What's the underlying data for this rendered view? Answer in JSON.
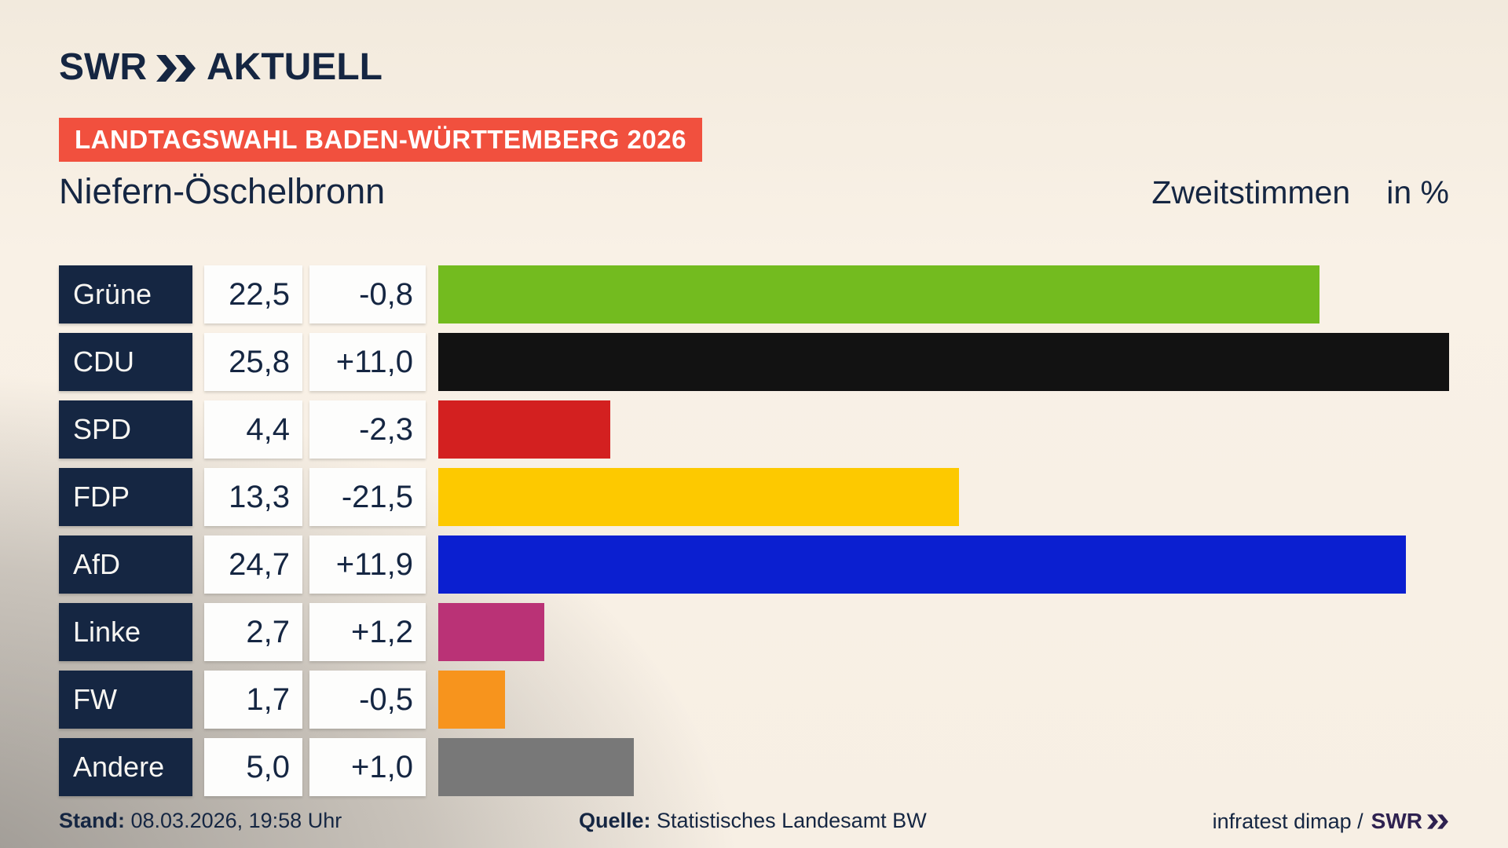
{
  "brand": {
    "swr": "SWR",
    "aktuell": "AKTUELL"
  },
  "banner": {
    "label": "LANDTAGSWAHL BADEN-WÜRTTEMBERG 2026",
    "bg_color": "#f1503e",
    "text_color": "#ffffff"
  },
  "header": {
    "location": "Niefern-Öschelbronn",
    "metric": "Zweitstimmen",
    "unit": "in %"
  },
  "chart_data": {
    "type": "bar",
    "title": "Niefern-Öschelbronn",
    "subtitle": "Zweitstimmen in %",
    "orientation": "horizontal",
    "scale_max": 25.8,
    "grid": false,
    "legend": false,
    "categories": [
      "Grüne",
      "CDU",
      "SPD",
      "FDP",
      "AfD",
      "Linke",
      "FW",
      "Andere"
    ],
    "values": [
      22.5,
      25.8,
      4.4,
      13.3,
      24.7,
      2.7,
      1.7,
      5.0
    ],
    "changes": [
      -0.8,
      11.0,
      -2.3,
      -21.5,
      11.9,
      1.2,
      -0.5,
      1.0
    ],
    "rows": [
      {
        "key": "gruene",
        "party": "Grüne",
        "value": 22.5,
        "value_label": "22,5",
        "change_label": "-0,8",
        "color": "#73bb1f"
      },
      {
        "key": "cdu",
        "party": "CDU",
        "value": 25.8,
        "value_label": "25,8",
        "change_label": "+11,0",
        "color": "#121212"
      },
      {
        "key": "spd",
        "party": "SPD",
        "value": 4.4,
        "value_label": "4,4",
        "change_label": "-2,3",
        "color": "#d32020"
      },
      {
        "key": "fdp",
        "party": "FDP",
        "value": 13.3,
        "value_label": "13,3",
        "change_label": "-21,5",
        "color": "#fdc900"
      },
      {
        "key": "afd",
        "party": "AfD",
        "value": 24.7,
        "value_label": "24,7",
        "change_label": "+11,9",
        "color": "#0b1fd0"
      },
      {
        "key": "linke",
        "party": "Linke",
        "value": 2.7,
        "value_label": "2,7",
        "change_label": "+1,2",
        "color": "#ba3276"
      },
      {
        "key": "fw",
        "party": "FW",
        "value": 1.7,
        "value_label": "1,7",
        "change_label": "-0,5",
        "color": "#f7941d"
      },
      {
        "key": "andere",
        "party": "Andere",
        "value": 5.0,
        "value_label": "5,0",
        "change_label": "+1,0",
        "color": "#787878"
      }
    ]
  },
  "footer": {
    "stand_label": "Stand:",
    "stand_value": " 08.03.2026, 19:58 Uhr",
    "quelle_label": "Quelle:",
    "quelle_value": " Statistisches Landesamt BW",
    "credit": "infratest dimap /",
    "credit_brand": "SWR"
  },
  "colors": {
    "navy": "#152642",
    "banner_red": "#f1503e",
    "background_cream": "#f8f0e5",
    "background_gray": "#b9b6b2",
    "credit_purple": "#2e2150"
  }
}
